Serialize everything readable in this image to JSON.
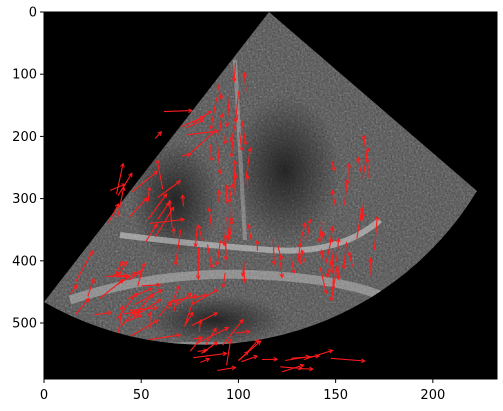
{
  "axes": {
    "x_ticks": [
      0,
      50,
      100,
      150,
      200
    ],
    "y_ticks": [
      0,
      100,
      200,
      300,
      400,
      500
    ],
    "x_range": [
      0,
      233
    ],
    "y_range": [
      0,
      590
    ]
  },
  "colors": {
    "background": "#000000",
    "arrow": "#ff1a1a",
    "echo_gray": "#8a8a8a"
  },
  "image": {
    "content": "echocardiogram-sector-with-red-motion-vectors"
  }
}
